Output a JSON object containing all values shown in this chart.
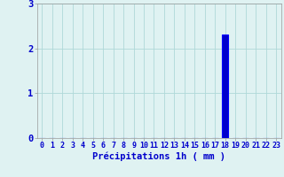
{
  "hours": [
    0,
    1,
    2,
    3,
    4,
    5,
    6,
    7,
    8,
    9,
    10,
    11,
    12,
    13,
    14,
    15,
    16,
    17,
    18,
    19,
    20,
    21,
    22,
    23
  ],
  "values": [
    0,
    0,
    0,
    0,
    0,
    0,
    0,
    0,
    0,
    0,
    0,
    0,
    0,
    0,
    0,
    0,
    0,
    0,
    2.3,
    0,
    0,
    0,
    0,
    0
  ],
  "bar_color": "#0000cc",
  "bar_edge_color": "#0000ff",
  "ylim": [
    0,
    3
  ],
  "yticks": [
    0,
    1,
    2,
    3
  ],
  "xlabel": "Précipitations 1h ( mm )",
  "xlabel_color": "#0000cc",
  "xlabel_fontsize": 7.5,
  "background_color": "#dff2f2",
  "grid_color": "#afd8d8",
  "tick_color": "#0000cc",
  "tick_fontsize": 6.0,
  "ytick_fontsize": 7.5,
  "figsize": [
    3.2,
    2.0
  ],
  "dpi": 100
}
